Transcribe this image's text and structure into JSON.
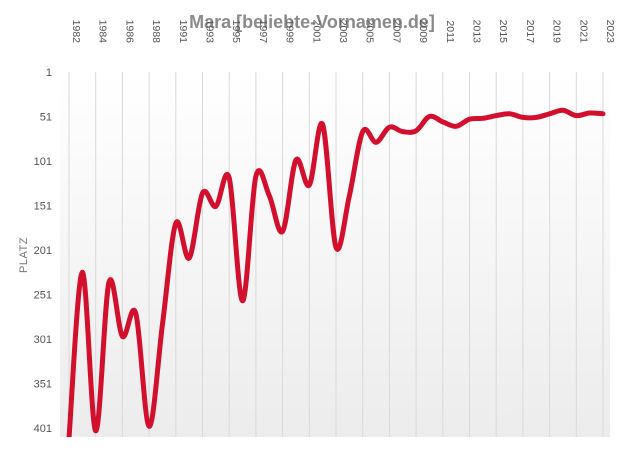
{
  "chart_data": {
    "type": "line",
    "title": "Mara [beliebte-Vornamen.de]",
    "xlabel": "",
    "ylabel": "PLATZ",
    "y_inverted": true,
    "ylim": [
      1,
      411
    ],
    "y_ticks": [
      1,
      51,
      101,
      151,
      201,
      251,
      301,
      351,
      401
    ],
    "x_ticks": [
      "1982",
      "1984",
      "1986",
      "1988",
      "1991",
      "1993",
      "1995",
      "1997",
      "1999",
      "2001",
      "2003",
      "2005",
      "2007",
      "2009",
      "2011",
      "2013",
      "2015",
      "2017",
      "2019",
      "2021",
      "2023"
    ],
    "line_color": "#d2102e",
    "grid": true,
    "legend": "none",
    "series": [
      {
        "values": [
          412,
          226,
          404,
          237,
          298,
          272,
          399,
          285,
          171,
          210,
          137,
          152,
          120,
          258,
          118,
          140,
          180,
          100,
          128,
          60,
          198,
          140,
          68,
          80,
          63,
          68,
          67,
          51,
          57,
          62,
          54,
          53,
          50,
          48,
          52,
          52,
          48,
          44,
          50,
          47,
          48
        ]
      }
    ]
  }
}
